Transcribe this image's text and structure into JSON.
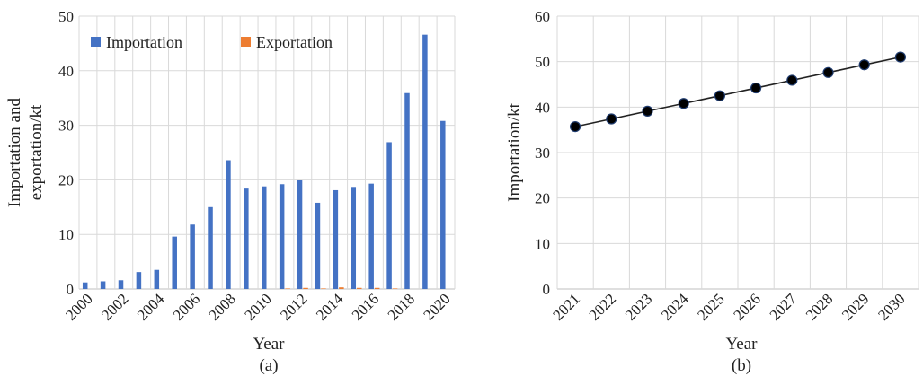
{
  "chart_data": [
    {
      "type": "bar",
      "panel_label": "(a)",
      "xlabel": "Year",
      "ylabel_line1": "Importation and",
      "ylabel_line2": "exportation/kt",
      "ylim": [
        0,
        50
      ],
      "yticks": [
        "0",
        "10",
        "20",
        "30",
        "40",
        "50"
      ],
      "categories": [
        "2000",
        "2001",
        "2002",
        "2003",
        "2004",
        "2005",
        "2006",
        "2007",
        "2008",
        "2009",
        "2010",
        "2011",
        "2012",
        "2013",
        "2014",
        "2015",
        "2016",
        "2017",
        "2018",
        "2019",
        "2020"
      ],
      "xtick_labels": [
        "2000",
        "2002",
        "2004",
        "2006",
        "2008",
        "2010",
        "2012",
        "2014",
        "2016",
        "2018",
        "2020"
      ],
      "legend_position": "top",
      "grid": true,
      "series": [
        {
          "name": "Importation",
          "color": "#4472C4",
          "values": [
            1.2,
            1.4,
            1.6,
            3.1,
            3.5,
            9.6,
            11.8,
            15.0,
            23.6,
            18.4,
            18.8,
            19.2,
            19.9,
            15.8,
            18.1,
            18.7,
            19.3,
            26.9,
            35.9,
            46.6,
            30.8
          ]
        },
        {
          "name": "Exportation",
          "color": "#ED7D31",
          "values": [
            0,
            0,
            0,
            0,
            0,
            0,
            0,
            0,
            0,
            0,
            0,
            0.1,
            0.2,
            0.1,
            0.3,
            0.2,
            0.2,
            0.1,
            0,
            0,
            0
          ]
        }
      ]
    },
    {
      "type": "line",
      "panel_label": "(b)",
      "xlabel": "Year",
      "ylabel": "Importation/kt",
      "ylim": [
        0,
        60
      ],
      "yticks": [
        "0",
        "10",
        "20",
        "30",
        "40",
        "50",
        "60"
      ],
      "x": [
        "2021",
        "2022",
        "2023",
        "2024",
        "2025",
        "2026",
        "2027",
        "2028",
        "2029",
        "2030"
      ],
      "grid": true,
      "marker": "circle",
      "line_color": "#222222",
      "marker_color": "#000000",
      "marker_edge_color": "#1f3b6e",
      "series": [
        {
          "values": [
            35.7,
            37.4,
            39.1,
            40.8,
            42.5,
            44.2,
            45.9,
            47.6,
            49.3,
            51.0
          ]
        }
      ]
    }
  ]
}
